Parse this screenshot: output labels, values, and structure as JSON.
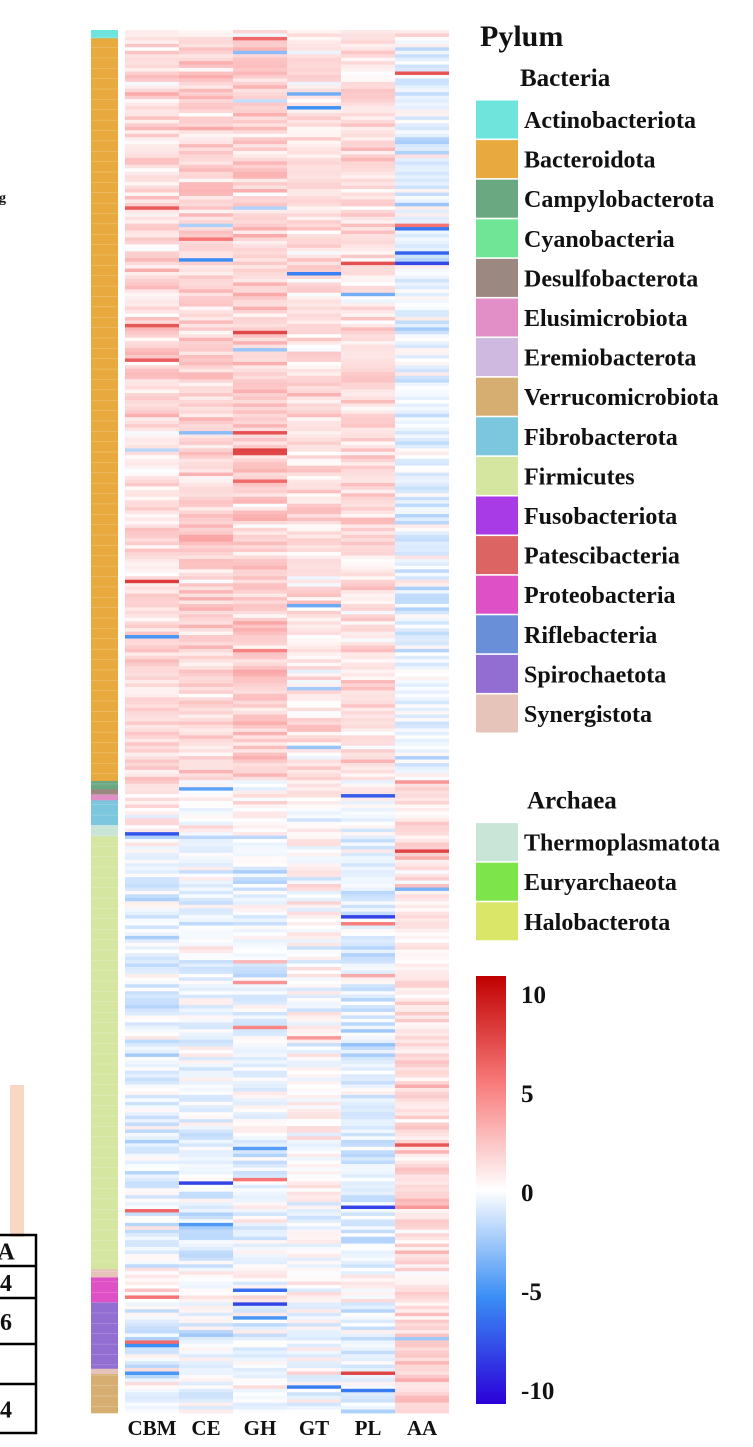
{
  "chart_data": {
    "type": "heatmap",
    "title": "",
    "xlabel": "",
    "ylabel": "",
    "columns": [
      "CBM",
      "CE",
      "GH",
      "GT",
      "PL",
      "AA"
    ],
    "row_count": 400,
    "value_range": [
      -10,
      10
    ],
    "colorbar_ticks": [
      {
        "label": "10",
        "value": 10
      },
      {
        "label": "5",
        "value": 5
      },
      {
        "label": "0",
        "value": 0
      },
      {
        "label": "-5",
        "value": -5
      },
      {
        "label": "-10",
        "value": -10
      }
    ],
    "colorscale": {
      "low": "#2b00d8",
      "low_mid": "#3a8ef5",
      "mid": "#ffffff",
      "high_mid": "#f87a7a",
      "high": "#c00000"
    },
    "column_means": {
      "bacteroidota": [
        1.3,
        1.6,
        1.8,
        1.1,
        1.2,
        -0.6
      ],
      "firmicutes": [
        -0.6,
        -0.4,
        -0.5,
        0.2,
        -0.8,
        1.1
      ],
      "spirochaetota": [
        -0.5,
        -0.6,
        -0.6,
        -0.2,
        -0.7,
        1.6
      ],
      "verrucomicrobiota": [
        -0.3,
        -0.4,
        -0.3,
        0.1,
        -0.5,
        1.8
      ]
    },
    "row_groups": [
      {
        "phylum": "Actinobacteriota",
        "fraction": 0.006
      },
      {
        "phylum": "Bacteroidota",
        "fraction": 0.537
      },
      {
        "phylum": "Campylobacterota",
        "fraction": 0.006
      },
      {
        "phylum": "Desulfobacterota",
        "fraction": 0.004
      },
      {
        "phylum": "Elusimicrobiota",
        "fraction": 0.004
      },
      {
        "phylum": "Fibrobacterota",
        "fraction": 0.018
      },
      {
        "phylum": "Thermoplasmatota",
        "fraction": 0.008
      },
      {
        "phylum": "Firmicutes",
        "fraction": 0.313
      },
      {
        "phylum": "Synergistota",
        "fraction": 0.006
      },
      {
        "phylum": "Proteobacteria",
        "fraction": 0.018
      },
      {
        "phylum": "Spirochaetota",
        "fraction": 0.048
      },
      {
        "phylum": "Synergistota",
        "fraction": 0.004
      },
      {
        "phylum": "Verrucomicrobiota",
        "fraction": 0.028
      }
    ],
    "legend": {
      "title": "Pylum",
      "groups": [
        {
          "name": "Bacteria",
          "items": [
            {
              "label": "Actinobacteriota",
              "color": "#6ee4dd"
            },
            {
              "label": "Bacteroidota",
              "color": "#e8aa3e"
            },
            {
              "label": "Campylobacterota",
              "color": "#69a880"
            },
            {
              "label": "Cyanobacteria",
              "color": "#71e596"
            },
            {
              "label": "Desulfobacterota",
              "color": "#9b8880"
            },
            {
              "label": "Elusimicrobiota",
              "color": "#e28ec7"
            },
            {
              "label": "Eremiobacterota",
              "color": "#d0b9e0"
            },
            {
              "label": "Verrucomicrobiota",
              "color": "#d6ae72"
            },
            {
              "label": "Fibrobacterota",
              "color": "#7cc6de"
            },
            {
              "label": "Firmicutes",
              "color": "#d5e6a0"
            },
            {
              "label": "Fusobacteriota",
              "color": "#a83be5"
            },
            {
              "label": "Patescibacteria",
              "color": "#dc6564"
            },
            {
              "label": "Proteobacteria",
              "color": "#de50c5"
            },
            {
              "label": "Riflebacteria",
              "color": "#688fd7"
            },
            {
              "label": "Spirochaetota",
              "color": "#926dd2"
            },
            {
              "label": "Synergistota",
              "color": "#e7c4ba"
            }
          ]
        },
        {
          "name": "Archaea",
          "items": [
            {
              "label": "Thermoplasmatota",
              "color": "#c8e5d8"
            },
            {
              "label": "Euryarchaeota",
              "color": "#7de449"
            },
            {
              "label": "Halobacterota",
              "color": "#d9e668"
            }
          ]
        }
      ]
    }
  },
  "edge_fragments": {
    "left_text": "g",
    "table_cells": [
      "A",
      "4",
      "6",
      "",
      "4"
    ]
  }
}
